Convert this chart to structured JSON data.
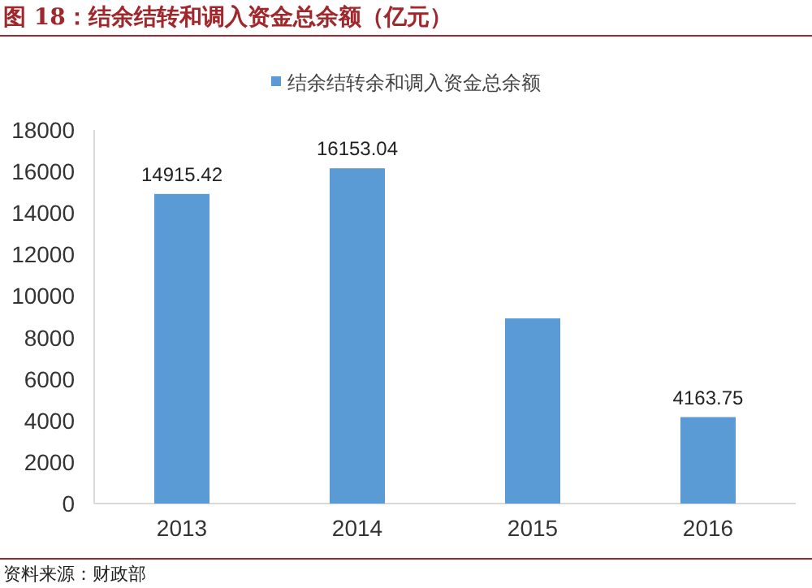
{
  "chart_data": {
    "type": "bar",
    "title": "图 18：结余结转和调入资金总余额（亿元）",
    "categories": [
      "2013",
      "2014",
      "2015",
      "2016"
    ],
    "series": [
      {
        "name": "结余结转余和调入资金总余额",
        "color": "#5b9bd5",
        "values": [
          14915.42,
          16153.04,
          8920,
          4163.75
        ],
        "value_labels": [
          "14915.42",
          "16153.04",
          null,
          "4163.75"
        ]
      }
    ],
    "ylim": [
      0,
      18000
    ],
    "yticks": [
      0,
      2000,
      4000,
      6000,
      8000,
      10000,
      12000,
      14000,
      16000,
      18000
    ],
    "legend": "top",
    "grid": false,
    "annotations": [
      "资料来源：财政部"
    ]
  }
}
